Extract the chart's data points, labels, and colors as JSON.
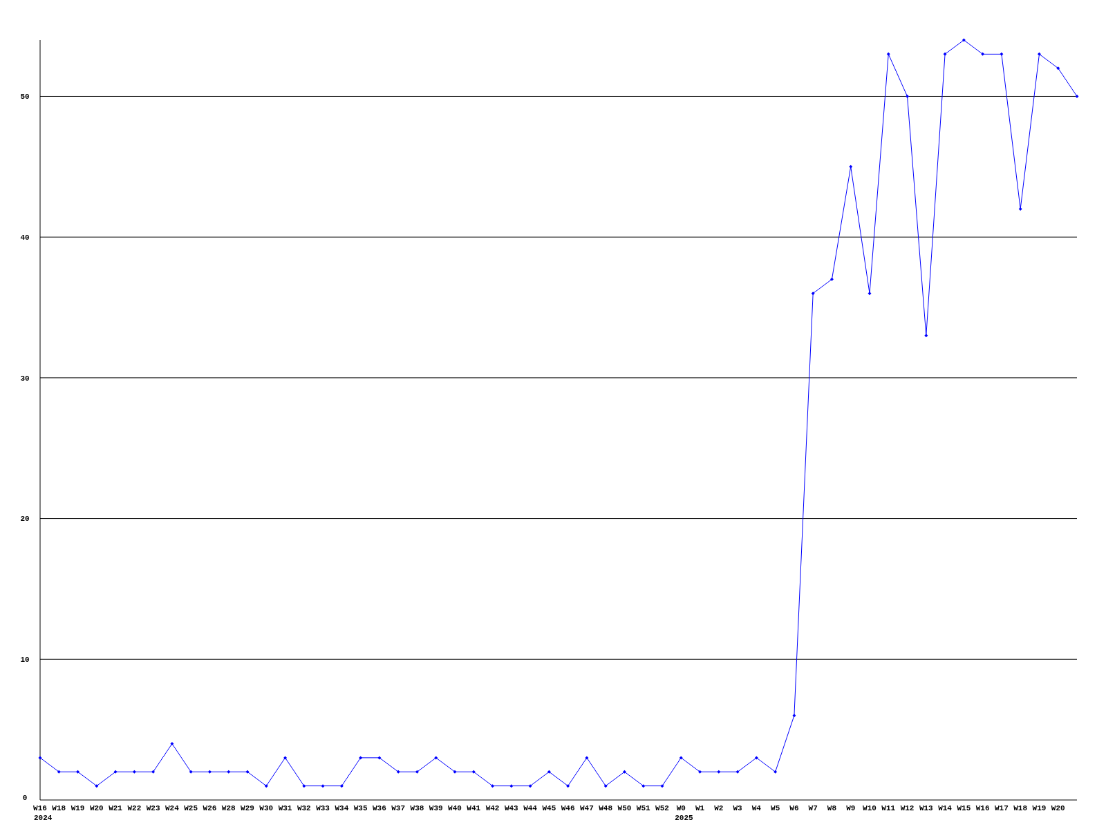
{
  "chart_data": {
    "type": "line",
    "categories": [
      "W16\n2024",
      "W18",
      "W19",
      "W20",
      "W21",
      "W22",
      "W23",
      "W24",
      "W25",
      "W26",
      "W28",
      "W29",
      "W30",
      "W31",
      "W32",
      "W33",
      "W34",
      "W35",
      "W36",
      "W37",
      "W38",
      "W39",
      "W40",
      "W41",
      "W42",
      "W43",
      "W44",
      "W45",
      "W46",
      "W47",
      "W48",
      "W50",
      "W51",
      "W52",
      "W0\n2025",
      "W1",
      "W2",
      "W3",
      "W4",
      "W5",
      "W6",
      "W7",
      "W8",
      "W9",
      "W10",
      "W11",
      "W12",
      "W13",
      "W14",
      "W15",
      "W16",
      "W17",
      "W18",
      "W19",
      "W20",
      null
    ],
    "series": [
      {
        "color": "#0000ff",
        "values": [
          3,
          2,
          2,
          1,
          2,
          2,
          2,
          4,
          2,
          2,
          2,
          2,
          1,
          3,
          1,
          1,
          1,
          3,
          3,
          2,
          2,
          3,
          2,
          2,
          1,
          1,
          1,
          2,
          1,
          3,
          1,
          2,
          1,
          1,
          3,
          2,
          2,
          2,
          3,
          2,
          6,
          36,
          37,
          45,
          36,
          53,
          50,
          33,
          53,
          54,
          53,
          53,
          42,
          53,
          52,
          50
        ]
      }
    ],
    "ylim": [
      0,
      54
    ],
    "yticks": [
      0,
      10,
      20,
      30,
      40,
      50
    ],
    "grid": "y",
    "marker": "diamond",
    "line_style": "solid"
  }
}
